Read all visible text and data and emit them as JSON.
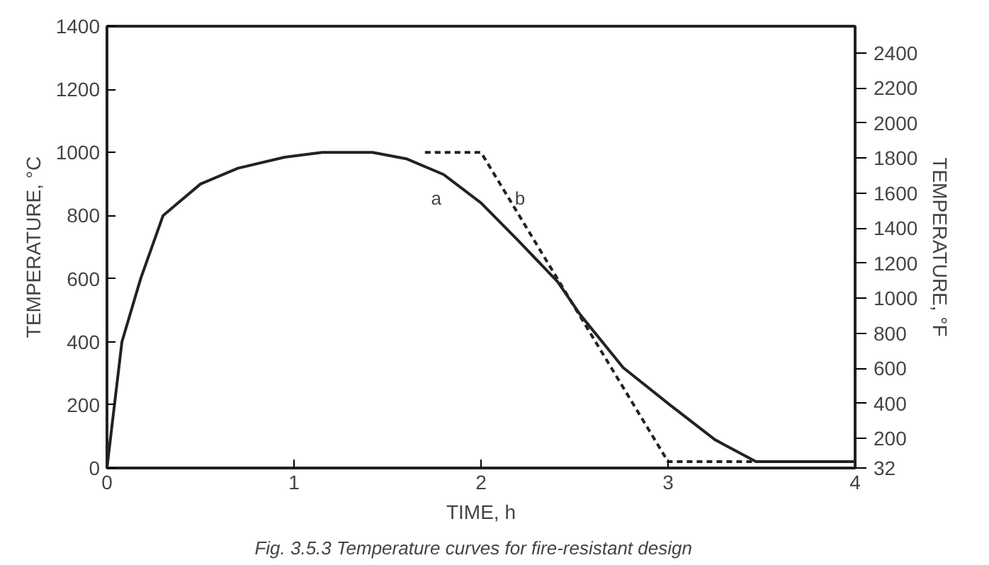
{
  "chart_data": {
    "type": "line",
    "xlabel": "TIME, h",
    "ylabel": "TEMPERATURE, °C",
    "y2label": "TEMPERATURE, °F",
    "xlim": [
      0,
      4
    ],
    "xticks": [
      0,
      1,
      2,
      3,
      4
    ],
    "ylim": [
      0,
      1400
    ],
    "yticks": [
      0,
      200,
      400,
      600,
      800,
      1000,
      1200,
      1400
    ],
    "y2lim": [
      32,
      2552
    ],
    "y2ticks": [
      32,
      200,
      400,
      600,
      800,
      1000,
      1200,
      1400,
      1600,
      1800,
      2000,
      2200,
      2400
    ],
    "grid": false,
    "series": [
      {
        "name": "a",
        "color": "#222222",
        "line_style": "solid",
        "x": [
          0,
          0.04,
          0.08,
          0.18,
          0.3,
          0.5,
          0.7,
          0.95,
          1.15,
          1.42,
          1.6,
          1.8,
          2.0,
          2.2,
          2.41,
          2.53,
          2.76,
          3.01,
          3.25,
          3.47,
          4
        ],
        "values": [
          0,
          200,
          400,
          600,
          800,
          900,
          950,
          985,
          1000,
          1000,
          980,
          930,
          840,
          720,
          590,
          486,
          318,
          200,
          90,
          20,
          20
        ]
      },
      {
        "name": "b",
        "color": "#222222",
        "line_style": "dashed",
        "x": [
          1.7,
          2.0,
          3.0,
          4
        ],
        "values": [
          1000,
          1000,
          20,
          20
        ]
      }
    ],
    "annotations": [
      "Fig. 3.5.3    Temperature curves for fire-resistant design"
    ]
  }
}
